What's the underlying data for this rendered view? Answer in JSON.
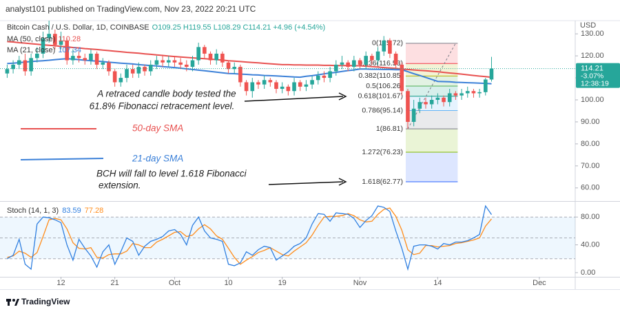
{
  "header": "analyst101 published on TradingView.com, Nov 23, 2022 20:21 UTC",
  "footer": "TradingView",
  "annotations": [
    {
      "lines": [
        "A retraced candle body tested the",
        "61.8% Fibonacci retracement level."
      ]
    },
    {
      "text": "50-day SMA"
    },
    {
      "text": "21-day SMA"
    },
    {
      "lines": [
        "BCH will fall to level 1.618 Fibonacci",
        "extension."
      ]
    }
  ],
  "chart_data": [
    {
      "type": "candlestick",
      "symbol": "Bitcoin Cash / U.S. Dollar, 1D, COINBASE",
      "ohlc_text": "O109.25 H119.55 L108.29 C114.21 +4.96 (+4.54%)",
      "currency": "USD",
      "up_color": "#26a69a",
      "down_color": "#ef5350",
      "xlim": [
        -1.2,
        95
      ],
      "xticks": [
        {
          "value": 9,
          "label": "12"
        },
        {
          "value": 18,
          "label": "21"
        },
        {
          "value": 28,
          "label": "Oct"
        },
        {
          "value": 37,
          "label": "10"
        },
        {
          "value": 46,
          "label": "19"
        },
        {
          "value": 59,
          "label": "Nov"
        },
        {
          "value": 72,
          "label": "14"
        },
        {
          "value": 89,
          "label": "Dec"
        }
      ],
      "ylim": [
        54,
        136
      ],
      "yticks": [
        {
          "value": 130,
          "label": "130.00"
        },
        {
          "value": 120,
          "label": "120.00"
        },
        {
          "value": 110,
          "label": "110.00"
        },
        {
          "value": 100,
          "label": "100.00"
        },
        {
          "value": 90,
          "label": "90.00"
        },
        {
          "value": 80,
          "label": "80.00"
        },
        {
          "value": 70,
          "label": "70.00"
        },
        {
          "value": 60,
          "label": "60.00"
        }
      ],
      "open": [
        112,
        114,
        116,
        118,
        113,
        119,
        121,
        128,
        130,
        125,
        127,
        118,
        120,
        119,
        118,
        121,
        116,
        117,
        113,
        108,
        110,
        114,
        112,
        115,
        113,
        116,
        118,
        117,
        118,
        117,
        116,
        115,
        118,
        124,
        121,
        118,
        121,
        117,
        114,
        115,
        108,
        104,
        108,
        107,
        109,
        108,
        105,
        106,
        104,
        108,
        106,
        107,
        109,
        111,
        110,
        113,
        116,
        117,
        115,
        118,
        116,
        120,
        118,
        122,
        127,
        121,
        116,
        104,
        90,
        96,
        99,
        98,
        100,
        101,
        99,
        103,
        102,
        103,
        104,
        103,
        103.5,
        109.25
      ],
      "high": [
        116,
        118,
        120,
        121,
        121,
        124,
        131,
        136,
        132,
        131,
        128,
        123,
        122,
        121,
        123,
        122,
        119,
        118,
        114,
        112,
        116,
        116,
        117,
        116,
        118,
        120,
        120,
        120,
        120,
        119,
        118,
        120,
        126,
        125,
        122,
        123,
        122,
        118,
        117,
        116,
        109,
        110,
        109,
        111,
        110,
        109,
        108,
        107,
        110,
        109,
        109,
        111,
        113,
        113,
        115,
        118,
        120,
        118,
        120,
        119,
        122,
        121,
        124,
        129,
        128,
        122,
        117,
        105,
        100,
        101,
        101,
        102,
        103,
        102,
        105,
        104,
        105,
        106,
        105,
        105,
        110,
        119.55
      ],
      "low": [
        110,
        112,
        114,
        111,
        111,
        117,
        119,
        126,
        123,
        123,
        116,
        116,
        117,
        116,
        116,
        114,
        114,
        111,
        106,
        106,
        108,
        110,
        110,
        111,
        111,
        114,
        115,
        115,
        115,
        114,
        113,
        113,
        116,
        119,
        116,
        116,
        115,
        112,
        112,
        106,
        102,
        101,
        105,
        105,
        106,
        103,
        103,
        102,
        102,
        104,
        104,
        105,
        107,
        108,
        108,
        111,
        114,
        113,
        113,
        114,
        114,
        116,
        116,
        120,
        119,
        114,
        102,
        86.81,
        88,
        94,
        96,
        96,
        98,
        97,
        97,
        100,
        100,
        101,
        101,
        101,
        102,
        108.29
      ],
      "close": [
        114,
        116,
        118,
        113,
        119,
        121,
        128,
        130,
        125,
        127,
        118,
        120,
        119,
        118,
        121,
        116,
        117,
        113,
        108,
        110,
        114,
        112,
        115,
        113,
        116,
        118,
        117,
        118,
        117,
        116,
        115,
        118,
        124,
        121,
        118,
        121,
        117,
        114,
        115,
        108,
        104,
        108,
        107,
        109,
        108,
        105,
        106,
        104,
        108,
        106,
        107,
        109,
        111,
        110,
        113,
        116,
        117,
        115,
        118,
        116,
        120,
        118,
        122,
        127,
        121,
        116,
        104,
        90,
        96,
        99,
        98,
        100,
        101,
        99,
        103,
        102,
        103,
        104,
        103,
        103.5,
        109.25,
        114.21
      ],
      "series": [
        {
          "name": "MA (50, close)",
          "color": "#e8504f",
          "values": [
            126.5,
            126.3,
            126.0,
            125.8,
            125.5,
            125.3,
            125.0,
            124.8,
            124.6,
            124.3,
            124.1,
            123.8,
            123.6,
            123.3,
            123.1,
            122.9,
            122.6,
            122.4,
            122.1,
            121.9,
            121.6,
            121.4,
            121.2,
            120.9,
            120.7,
            120.4,
            120.2,
            119.9,
            119.7,
            119.5,
            119.3,
            119.1,
            118.9,
            118.7,
            118.5,
            118.3,
            118.1,
            117.8,
            117.6,
            117.4,
            117.2,
            117.0,
            116.8,
            116.6,
            116.4,
            116.2,
            116.0,
            116.0,
            115.9,
            115.9,
            115.8,
            115.8,
            115.8,
            115.7,
            115.7,
            115.6,
            115.6,
            115.6,
            115.5,
            115.5,
            115.3,
            115.1,
            114.9,
            114.7,
            114.5,
            114.3,
            114.0,
            113.8,
            113.6,
            113.4,
            113.2,
            113.0,
            112.8,
            112.5,
            112.2,
            112.0,
            111.7,
            111.4,
            111.1,
            110.8,
            110.6,
            110.28
          ]
        },
        {
          "name": "MA (21, close)",
          "color": "#3b80d8",
          "values": [
            116.5,
            116.7,
            116.9,
            117.2,
            117.4,
            117.6,
            117.8,
            118.0,
            118.3,
            118.5,
            118.7,
            118.5,
            118.3,
            118.0,
            117.8,
            117.6,
            117.4,
            117.1,
            116.9,
            116.7,
            116.5,
            116.3,
            116.0,
            115.8,
            115.6,
            115.4,
            115.1,
            114.9,
            114.7,
            114.4,
            114.1,
            113.8,
            113.5,
            113.2,
            112.9,
            112.6,
            112.3,
            112.0,
            111.9,
            111.7,
            111.6,
            111.4,
            111.3,
            111.1,
            111.0,
            110.9,
            110.7,
            110.6,
            110.4,
            110.3,
            110.7,
            111.0,
            111.4,
            111.8,
            112.2,
            112.5,
            112.9,
            113.3,
            113.6,
            114.0,
            114.0,
            113.9,
            113.9,
            113.8,
            113.8,
            113.7,
            113.7,
            112.8,
            111.9,
            111.1,
            110.2,
            109.3,
            108.4,
            108.3,
            108.2,
            108.0,
            107.9,
            107.8,
            107.7,
            107.6,
            107.5,
            107.34
          ]
        }
      ],
      "last_price_tag": {
        "change": "-3.07%",
        "countdown": "12:38:19"
      },
      "fibonacci": {
        "x": [
          67,
          75
        ],
        "levels": [
          {
            "label": "0(125.72)",
            "value": 125.72,
            "color": "#787b86"
          },
          {
            "label": "0.236(116.53)",
            "value": 116.53,
            "color": "#f23645"
          },
          {
            "label": "0.382(110.85)",
            "value": 110.85,
            "color": "#b5b200"
          },
          {
            "label": "0.5(106.26)",
            "value": 106.26,
            "color": "#4caf50"
          },
          {
            "label": "0.618(101.67)",
            "value": 101.67,
            "color": "#089981"
          },
          {
            "label": "0.786(95.14)",
            "value": 95.14,
            "color": "#64b5f6"
          },
          {
            "label": "1(86.81)",
            "value": 86.81,
            "color": "#787b86"
          },
          {
            "label": "1.272(76.23)",
            "value": 76.23,
            "color": "#7fb800"
          },
          {
            "label": "1.618(62.77)",
            "value": 62.77,
            "color": "#2962ff"
          }
        ]
      }
    },
    {
      "type": "line",
      "title": "Stoch (14, 1, 3)",
      "ylim": [
        -6,
        102
      ],
      "yticks": [
        {
          "value": 80,
          "label": "80.00"
        },
        {
          "value": 40,
          "label": "40.00"
        },
        {
          "value": 0,
          "label": "0.00"
        }
      ],
      "bands": [
        20,
        50,
        80
      ],
      "series": [
        {
          "color": "#2f7fe0",
          "values": [
            20,
            25,
            48,
            12,
            5,
            70,
            80,
            79,
            76,
            72,
            40,
            18,
            48,
            35,
            24,
            8,
            30,
            40,
            12,
            30,
            50,
            45,
            25,
            38,
            45,
            48,
            52,
            60,
            62,
            55,
            40,
            68,
            80,
            60,
            50,
            48,
            45,
            12,
            10,
            14,
            30,
            25,
            33,
            38,
            36,
            18,
            24,
            30,
            38,
            42,
            50,
            70,
            85,
            84,
            74,
            86,
            85,
            84,
            78,
            65,
            75,
            82,
            96,
            94,
            88,
            60,
            35,
            5,
            38,
            40,
            40,
            38,
            34,
            42,
            40,
            44,
            44,
            46,
            50,
            55,
            96,
            83.59
          ]
        },
        {
          "color": "#ff8c1a",
          "values": [
            22,
            24,
            31,
            28,
            22,
            29,
            52,
            76,
            78,
            76,
            63,
            43,
            35,
            34,
            36,
            22,
            21,
            26,
            27,
            27,
            31,
            42,
            40,
            36,
            36,
            44,
            48,
            53,
            58,
            59,
            52,
            54,
            63,
            69,
            63,
            53,
            48,
            35,
            22,
            12,
            18,
            23,
            29,
            32,
            36,
            31,
            26,
            24,
            31,
            37,
            43,
            54,
            68,
            80,
            81,
            81,
            82,
            85,
            82,
            76,
            73,
            74,
            84,
            91,
            93,
            81,
            61,
            33,
            26,
            28,
            39,
            39,
            37,
            38,
            39,
            42,
            43,
            45,
            47,
            50,
            67,
            77.28
          ]
        }
      ]
    }
  ]
}
